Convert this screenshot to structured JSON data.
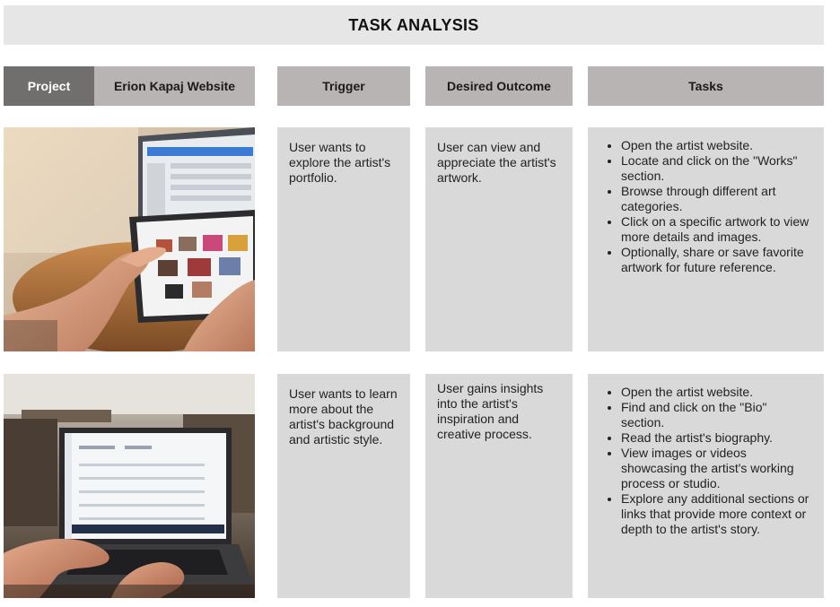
{
  "title": "TASK ANALYSIS",
  "header": {
    "project_label": "Project",
    "project_name": "Erion Kapaj Website",
    "trigger": "Trigger",
    "desired_outcome": "Desired Outcome",
    "tasks": "Tasks"
  },
  "rows": [
    {
      "photo_icon": "hands-on-tablet-photo",
      "trigger": "User wants to explore the artist's portfolio.",
      "outcome": "User can view and appreciate the artist's artwork.",
      "tasks": [
        "Open the artist website.",
        "Locate and click on the \"Works\" section.",
        "Browse through different art categories.",
        "Click on a specific artwork to view more details and images.",
        "Optionally, share or save favorite artwork for future reference."
      ]
    },
    {
      "photo_icon": "hands-on-laptop-photo",
      "trigger": "User wants to learn more about the artist's background and artistic style.",
      "outcome": "User gains insights into the artist's inspiration and creative process.",
      "tasks": [
        "Open the artist website.",
        "Find and click on the \"Bio\" section.",
        "Read the artist's biography.",
        "View images or videos showcasing the artist's working process or studio.",
        "Explore any additional sections or links that provide more context or depth to the artist's story."
      ]
    }
  ],
  "colors": {
    "title_bg": "#e6e6e6",
    "project_label_bg": "#716e6e",
    "header_bg": "#b9b4b4",
    "cell_bg": "#d9d9d9"
  }
}
